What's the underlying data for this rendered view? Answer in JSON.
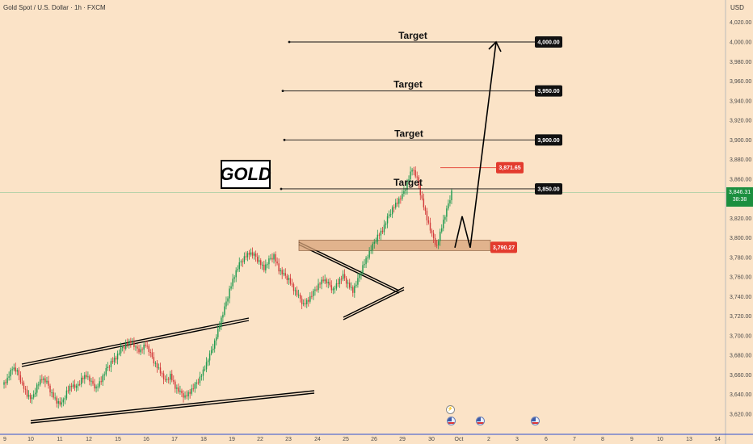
{
  "header": {
    "symbol_line": "Gold Spot / U.S. Dollar · 1h · FXCM",
    "currency": "USD"
  },
  "annotation": {
    "logo_text": "GOLD"
  },
  "colors": {
    "up": "#1f9a4f",
    "down": "#d23a3a",
    "background": "#fbe3c7",
    "label_dark": "#111111",
    "label_red": "#e33b2e",
    "current": "#1b8f3f"
  },
  "current_price": {
    "value": "3,846.31",
    "countdown": "38:38"
  },
  "events": {
    "lightning_icon": "lightning-icon",
    "flag_icon": "us-flag-icon"
  },
  "chart_data": {
    "type": "candlestick",
    "title": "",
    "xlabel": "",
    "ylabel": "",
    "ylim": [
      3600,
      4040
    ],
    "x_ticks": [
      "9",
      "10",
      "11",
      "12",
      "15",
      "16",
      "17",
      "18",
      "19",
      "22",
      "23",
      "24",
      "25",
      "26",
      "29",
      "30",
      "Oct",
      "2",
      "3",
      "6",
      "7",
      "8",
      "9",
      "10",
      "13",
      "14"
    ],
    "y_ticks": [
      "4,020.00",
      "4,000.00",
      "3,980.00",
      "3,960.00",
      "3,940.00",
      "3,920.00",
      "3,900.00",
      "3,880.00",
      "3,860.00",
      "3,840.00",
      "3,820.00",
      "3,800.00",
      "3,780.00",
      "3,760.00",
      "3,740.00",
      "3,720.00",
      "3,700.00",
      "3,680.00",
      "3,660.00",
      "3,640.00",
      "3,620.00"
    ],
    "price_path": [
      3650,
      3655,
      3668,
      3663,
      3650,
      3640,
      3635,
      3648,
      3657,
      3652,
      3640,
      3633,
      3630,
      3642,
      3650,
      3647,
      3655,
      3660,
      3652,
      3646,
      3655,
      3665,
      3672,
      3678,
      3686,
      3690,
      3695,
      3687,
      3684,
      3692,
      3681,
      3670,
      3664,
      3653,
      3659,
      3648,
      3642,
      3637,
      3643,
      3649,
      3656,
      3668,
      3680,
      3693,
      3712,
      3728,
      3746,
      3762,
      3773,
      3779,
      3785,
      3782,
      3775,
      3769,
      3777,
      3781,
      3768,
      3762,
      3757,
      3748,
      3740,
      3731,
      3737,
      3744,
      3751,
      3758,
      3753,
      3746,
      3755,
      3761,
      3752,
      3746,
      3757,
      3770,
      3782,
      3792,
      3801,
      3808,
      3820,
      3829,
      3837,
      3843,
      3855,
      3871.65,
      3860,
      3838,
      3820,
      3803,
      3790.27,
      3812,
      3828,
      3846.31
    ],
    "levels": [
      {
        "label": "Target",
        "value": 4000,
        "price_label": "4,000.00"
      },
      {
        "label": "Target",
        "value": 3950,
        "price_label": "3,950.00"
      },
      {
        "label": "Target",
        "value": 3900,
        "price_label": "3,900.00"
      },
      {
        "label": "Target",
        "value": 3850,
        "price_label": "3,850.00"
      }
    ],
    "high_label": {
      "value": 3871.65,
      "text": "3,871.65"
    },
    "support": {
      "value": 3790.27,
      "text": "3,790.27"
    },
    "projection": [
      3790,
      3822,
      3790,
      4000
    ]
  }
}
